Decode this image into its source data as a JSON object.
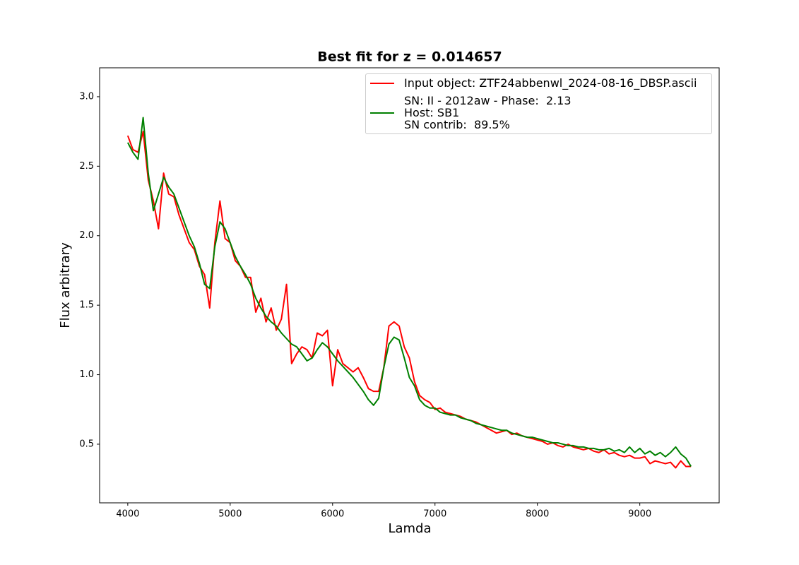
{
  "chart_data": {
    "type": "line",
    "title": "Best fit for z = 0.014657",
    "x_label": "Lamda",
    "y_label": "Flux arbitrary",
    "x": [
      4000,
      4050,
      4100,
      4150,
      4200,
      4250,
      4300,
      4350,
      4400,
      4450,
      4500,
      4550,
      4600,
      4650,
      4700,
      4750,
      4800,
      4850,
      4900,
      4950,
      5000,
      5050,
      5100,
      5150,
      5200,
      5250,
      5300,
      5350,
      5400,
      5450,
      5500,
      5550,
      5600,
      5650,
      5700,
      5750,
      5800,
      5850,
      5900,
      5950,
      6000,
      6050,
      6100,
      6150,
      6200,
      6250,
      6300,
      6350,
      6400,
      6450,
      6500,
      6550,
      6600,
      6650,
      6700,
      6750,
      6800,
      6850,
      6900,
      6950,
      7000,
      7050,
      7100,
      7150,
      7200,
      7250,
      7300,
      7350,
      7400,
      7450,
      7500,
      7550,
      7600,
      7650,
      7700,
      7750,
      7800,
      7850,
      7900,
      7950,
      8000,
      8050,
      8100,
      8150,
      8200,
      8250,
      8300,
      8350,
      8400,
      8450,
      8500,
      8550,
      8600,
      8650,
      8700,
      8750,
      8800,
      8850,
      8900,
      8950,
      9000,
      9050,
      9100,
      9150,
      9200,
      9250,
      9300,
      9350,
      9400,
      9450,
      9500
    ],
    "series": [
      {
        "name": "Input object: ZTF24abbenwl_2024-08-16_DBSP.ascii",
        "color": "#ff0000",
        "values": [
          2.72,
          2.62,
          2.6,
          2.75,
          2.4,
          2.25,
          2.05,
          2.45,
          2.3,
          2.28,
          2.15,
          2.05,
          1.95,
          1.9,
          1.78,
          1.72,
          1.48,
          1.95,
          2.25,
          1.98,
          1.95,
          1.82,
          1.78,
          1.7,
          1.7,
          1.45,
          1.55,
          1.38,
          1.48,
          1.32,
          1.4,
          1.65,
          1.08,
          1.15,
          1.2,
          1.18,
          1.12,
          1.3,
          1.28,
          1.32,
          0.92,
          1.18,
          1.08,
          1.05,
          1.02,
          1.05,
          0.98,
          0.9,
          0.88,
          0.88,
          1.05,
          1.35,
          1.38,
          1.35,
          1.2,
          1.12,
          0.95,
          0.85,
          0.82,
          0.8,
          0.75,
          0.76,
          0.73,
          0.72,
          0.71,
          0.7,
          0.68,
          0.67,
          0.66,
          0.64,
          0.62,
          0.6,
          0.58,
          0.59,
          0.6,
          0.57,
          0.58,
          0.56,
          0.55,
          0.54,
          0.53,
          0.52,
          0.5,
          0.51,
          0.49,
          0.48,
          0.5,
          0.48,
          0.47,
          0.46,
          0.47,
          0.45,
          0.44,
          0.46,
          0.43,
          0.44,
          0.42,
          0.41,
          0.42,
          0.4,
          0.4,
          0.41,
          0.36,
          0.38,
          0.37,
          0.36,
          0.37,
          0.33,
          0.38,
          0.34,
          0.34
        ]
      },
      {
        "name": "SN: II - 2012aw - Phase:  2.13\nHost: SB1\nSN contrib:  89.5%",
        "color": "#008000",
        "values": [
          2.67,
          2.6,
          2.55,
          2.85,
          2.45,
          2.18,
          2.3,
          2.42,
          2.35,
          2.3,
          2.2,
          2.1,
          2.0,
          1.92,
          1.8,
          1.65,
          1.62,
          1.92,
          2.1,
          2.05,
          1.95,
          1.85,
          1.78,
          1.72,
          1.65,
          1.55,
          1.48,
          1.42,
          1.38,
          1.35,
          1.3,
          1.26,
          1.22,
          1.2,
          1.15,
          1.1,
          1.12,
          1.18,
          1.23,
          1.2,
          1.15,
          1.1,
          1.06,
          1.02,
          0.98,
          0.93,
          0.88,
          0.82,
          0.78,
          0.83,
          1.05,
          1.22,
          1.27,
          1.25,
          1.12,
          0.98,
          0.92,
          0.82,
          0.78,
          0.76,
          0.76,
          0.73,
          0.72,
          0.71,
          0.71,
          0.69,
          0.68,
          0.67,
          0.65,
          0.64,
          0.63,
          0.62,
          0.61,
          0.6,
          0.6,
          0.58,
          0.57,
          0.56,
          0.55,
          0.55,
          0.54,
          0.53,
          0.52,
          0.51,
          0.51,
          0.5,
          0.49,
          0.49,
          0.48,
          0.48,
          0.47,
          0.47,
          0.46,
          0.46,
          0.47,
          0.45,
          0.46,
          0.44,
          0.48,
          0.44,
          0.47,
          0.43,
          0.45,
          0.42,
          0.44,
          0.41,
          0.44,
          0.48,
          0.43,
          0.4,
          0.34
        ]
      }
    ],
    "xlim": [
      3725,
      9775
    ],
    "ylim": [
      0.078,
      3.208
    ],
    "xticks": [
      4000,
      5000,
      6000,
      7000,
      8000,
      9000
    ],
    "yticks": [
      0.5,
      {
        "value": 1,
        "label": "1.0"
      },
      1.5,
      {
        "value": 2,
        "label": "2.0"
      },
      2.5,
      {
        "value": 3,
        "label": "3.0"
      }
    ],
    "legend": "upper right"
  }
}
